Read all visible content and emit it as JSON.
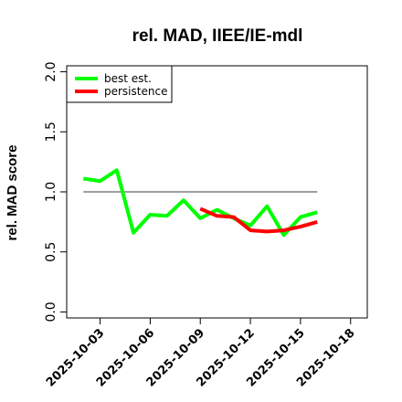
{
  "chart_data": {
    "type": "line",
    "title": "rel. MAD, IIEE/IE-mdl",
    "xlabel": "",
    "ylabel": "rel. MAD score",
    "xlim": [
      "2025-10-01",
      "2025-10-19"
    ],
    "ylim": [
      -0.05,
      2.05
    ],
    "yticks": [
      0.0,
      0.5,
      1.0,
      1.5,
      2.0
    ],
    "ytick_labels": [
      "0.0",
      "0.5",
      "1.0",
      "1.5",
      "2.0"
    ],
    "xticks": [
      "2025-10-03",
      "2025-10-06",
      "2025-10-09",
      "2025-10-12",
      "2025-10-15",
      "2025-10-18"
    ],
    "grid": false,
    "legend_position": "top-left",
    "reference_line": {
      "y": 1.0,
      "x_start": "2025-10-02",
      "x_end": "2025-10-16",
      "color": "#7f7f7f"
    },
    "series": [
      {
        "name": "best est.",
        "color": "#00ff00",
        "x": [
          "2025-10-02",
          "2025-10-03",
          "2025-10-04",
          "2025-10-05",
          "2025-10-06",
          "2025-10-07",
          "2025-10-08",
          "2025-10-09",
          "2025-10-10",
          "2025-10-11",
          "2025-10-12",
          "2025-10-13",
          "2025-10-14",
          "2025-10-15",
          "2025-10-16"
        ],
        "y": [
          1.11,
          1.09,
          1.18,
          0.66,
          0.81,
          0.8,
          0.93,
          0.78,
          0.85,
          0.78,
          0.72,
          0.88,
          0.64,
          0.79,
          0.83
        ]
      },
      {
        "name": "persistence",
        "color": "#ff0000",
        "x": [
          "2025-10-09",
          "2025-10-10",
          "2025-10-11",
          "2025-10-12",
          "2025-10-13",
          "2025-10-14",
          "2025-10-15",
          "2025-10-16"
        ],
        "y": [
          0.86,
          0.8,
          0.79,
          0.68,
          0.67,
          0.68,
          0.71,
          0.75
        ]
      }
    ]
  }
}
